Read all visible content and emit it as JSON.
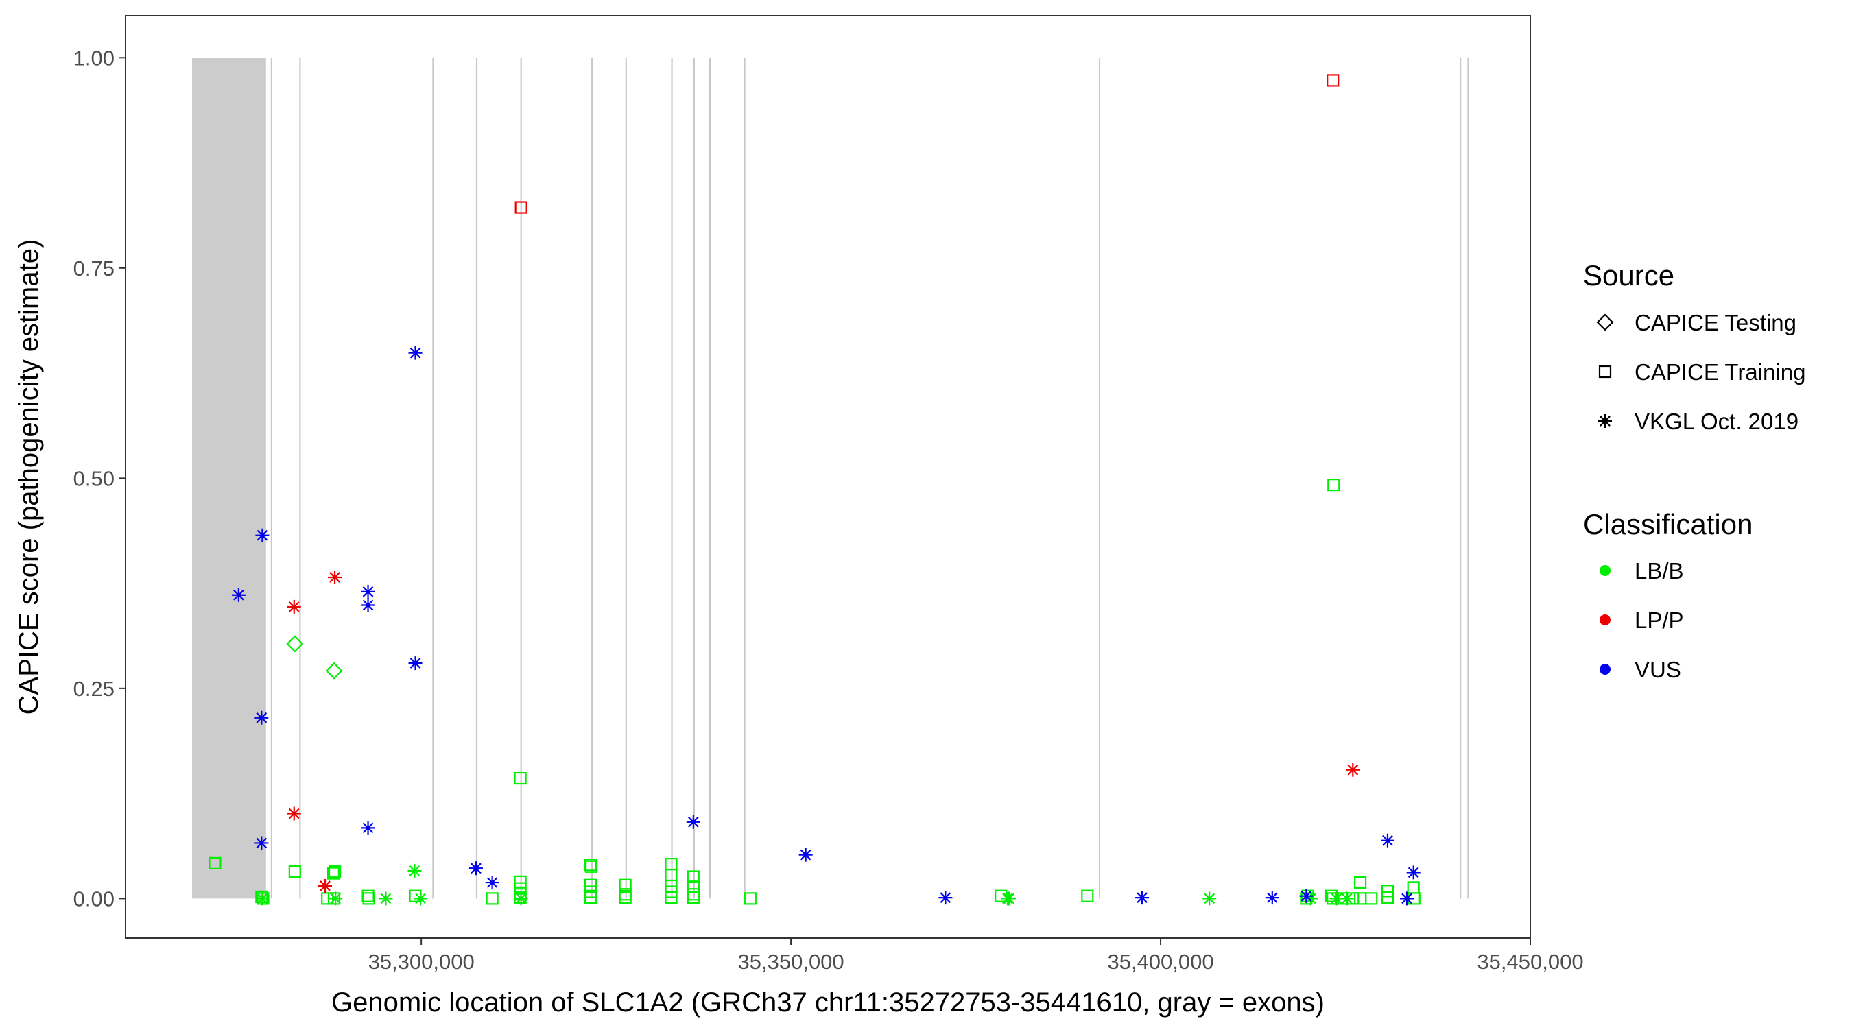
{
  "chart_data": {
    "type": "scatter",
    "xlabel": "Genomic location of SLC1A2 (GRCh37 chr11:35272753-35441610, gray = exons)",
    "ylabel": "CAPICE score (pathogenicity estimate)",
    "xlim": [
      35260000,
      35450000
    ],
    "ylim": [
      -0.047,
      1.05
    ],
    "x_ticks": [
      35300000,
      35350000,
      35400000,
      35450000
    ],
    "x_tick_labels": [
      "35,300,000",
      "35,350,000",
      "35,400,000",
      "35,450,000"
    ],
    "y_ticks": [
      0,
      0.25,
      0.5,
      0.75,
      1.0
    ],
    "y_tick_labels": [
      "0.00",
      "0.25",
      "0.50",
      "0.75",
      "1.00"
    ],
    "grid": false,
    "exons": [
      {
        "start": 35269000,
        "end": 35279000
      },
      {
        "start": 35279650,
        "end": 35279750
      },
      {
        "start": 35283500,
        "end": 35283700
      },
      {
        "start": 35301500,
        "end": 35301600
      },
      {
        "start": 35307400,
        "end": 35307600
      },
      {
        "start": 35313400,
        "end": 35313600
      },
      {
        "start": 35323000,
        "end": 35323100
      },
      {
        "start": 35327600,
        "end": 35327800
      },
      {
        "start": 35333800,
        "end": 35334000
      },
      {
        "start": 35336800,
        "end": 35337000
      },
      {
        "start": 35338950,
        "end": 35339100
      },
      {
        "start": 35343650,
        "end": 35343750
      },
      {
        "start": 35391650,
        "end": 35391750
      },
      {
        "start": 35440450,
        "end": 35440650
      },
      {
        "start": 35441500,
        "end": 35441610
      }
    ],
    "legend": {
      "position": "right",
      "source": {
        "title": "Source",
        "entries": [
          {
            "label": "CAPICE Testing",
            "shape": "diamond"
          },
          {
            "label": "CAPICE Training",
            "shape": "square"
          },
          {
            "label": "VKGL Oct. 2019",
            "shape": "asterisk"
          }
        ]
      },
      "classification": {
        "title": "Classification",
        "entries": [
          {
            "label": "LB/B",
            "color": "#00ee00"
          },
          {
            "label": "LP/P",
            "color": "#ee0000"
          },
          {
            "label": "VUS",
            "color": "#0000ee"
          }
        ]
      }
    },
    "colors": {
      "LB/B": "#00ee00",
      "LP/P": "#ee0000",
      "VUS": "#0000ee"
    },
    "points": [
      {
        "x": 35272100,
        "y": 0.042,
        "source": "CAPICE Training",
        "class": "LB/B"
      },
      {
        "x": 35278400,
        "y": 0.002,
        "source": "CAPICE Training",
        "class": "LB/B"
      },
      {
        "x": 35278600,
        "y": 0.0,
        "source": "CAPICE Training",
        "class": "LB/B"
      },
      {
        "x": 35278500,
        "y": 0.0,
        "source": "VKGL Oct. 2019",
        "class": "LB/B"
      },
      {
        "x": 35282900,
        "y": 0.032,
        "source": "CAPICE Training",
        "class": "LB/B"
      },
      {
        "x": 35287300,
        "y": 0.0,
        "source": "CAPICE Training",
        "class": "LB/B"
      },
      {
        "x": 35288100,
        "y": 0.03,
        "source": "CAPICE Training",
        "class": "LB/B"
      },
      {
        "x": 35288300,
        "y": 0.032,
        "source": "CAPICE Training",
        "class": "LB/B"
      },
      {
        "x": 35288200,
        "y": 0.0,
        "source": "CAPICE Training",
        "class": "LB/B"
      },
      {
        "x": 35288400,
        "y": 0.0,
        "source": "VKGL Oct. 2019",
        "class": "LB/B"
      },
      {
        "x": 35292800,
        "y": 0.003,
        "source": "CAPICE Training",
        "class": "LB/B"
      },
      {
        "x": 35292900,
        "y": 0.0,
        "source": "CAPICE Training",
        "class": "LB/B"
      },
      {
        "x": 35295200,
        "y": 0.0,
        "source": "VKGL Oct. 2019",
        "class": "LB/B"
      },
      {
        "x": 35299100,
        "y": 0.033,
        "source": "VKGL Oct. 2019",
        "class": "LB/B"
      },
      {
        "x": 35299200,
        "y": 0.003,
        "source": "CAPICE Training",
        "class": "LB/B"
      },
      {
        "x": 35299900,
        "y": 0.0,
        "source": "VKGL Oct. 2019",
        "class": "LB/B"
      },
      {
        "x": 35309600,
        "y": 0.0,
        "source": "CAPICE Training",
        "class": "LB/B"
      },
      {
        "x": 35313400,
        "y": 0.143,
        "source": "CAPICE Training",
        "class": "LB/B"
      },
      {
        "x": 35313400,
        "y": 0.02,
        "source": "CAPICE Training",
        "class": "LB/B"
      },
      {
        "x": 35313400,
        "y": 0.012,
        "source": "CAPICE Training",
        "class": "LB/B"
      },
      {
        "x": 35313400,
        "y": 0.005,
        "source": "CAPICE Training",
        "class": "LB/B"
      },
      {
        "x": 35313400,
        "y": 0.001,
        "source": "CAPICE Training",
        "class": "LB/B"
      },
      {
        "x": 35313500,
        "y": 0.0,
        "source": "VKGL Oct. 2019",
        "class": "LB/B"
      },
      {
        "x": 35322900,
        "y": 0.04,
        "source": "CAPICE Training",
        "class": "LB/B"
      },
      {
        "x": 35323000,
        "y": 0.038,
        "source": "CAPICE Training",
        "class": "LB/B"
      },
      {
        "x": 35322900,
        "y": 0.016,
        "source": "CAPICE Training",
        "class": "LB/B"
      },
      {
        "x": 35322900,
        "y": 0.008,
        "source": "CAPICE Training",
        "class": "LB/B"
      },
      {
        "x": 35322900,
        "y": 0.001,
        "source": "CAPICE Training",
        "class": "LB/B"
      },
      {
        "x": 35327600,
        "y": 0.016,
        "source": "CAPICE Training",
        "class": "LB/B"
      },
      {
        "x": 35327600,
        "y": 0.005,
        "source": "CAPICE Training",
        "class": "LB/B"
      },
      {
        "x": 35327600,
        "y": 0.001,
        "source": "CAPICE Training",
        "class": "LB/B"
      },
      {
        "x": 35333800,
        "y": 0.041,
        "source": "CAPICE Training",
        "class": "LB/B"
      },
      {
        "x": 35333800,
        "y": 0.028,
        "source": "CAPICE Training",
        "class": "LB/B"
      },
      {
        "x": 35333800,
        "y": 0.015,
        "source": "CAPICE Training",
        "class": "LB/B"
      },
      {
        "x": 35333800,
        "y": 0.008,
        "source": "CAPICE Training",
        "class": "LB/B"
      },
      {
        "x": 35333800,
        "y": 0.001,
        "source": "CAPICE Training",
        "class": "LB/B"
      },
      {
        "x": 35336800,
        "y": 0.026,
        "source": "CAPICE Training",
        "class": "LB/B"
      },
      {
        "x": 35336800,
        "y": 0.014,
        "source": "CAPICE Training",
        "class": "LB/B"
      },
      {
        "x": 35336800,
        "y": 0.005,
        "source": "CAPICE Training",
        "class": "LB/B"
      },
      {
        "x": 35336800,
        "y": 0.001,
        "source": "CAPICE Training",
        "class": "LB/B"
      },
      {
        "x": 35344500,
        "y": 0.0,
        "source": "CAPICE Training",
        "class": "LB/B"
      },
      {
        "x": 35378400,
        "y": 0.003,
        "source": "CAPICE Training",
        "class": "LB/B"
      },
      {
        "x": 35379300,
        "y": 0.0,
        "source": "VKGL Oct. 2019",
        "class": "LB/B"
      },
      {
        "x": 35379500,
        "y": 0.0,
        "source": "VKGL Oct. 2019",
        "class": "LB/B"
      },
      {
        "x": 35390100,
        "y": 0.003,
        "source": "CAPICE Training",
        "class": "LB/B"
      },
      {
        "x": 35406600,
        "y": 0.0,
        "source": "VKGL Oct. 2019",
        "class": "LB/B"
      },
      {
        "x": 35419700,
        "y": 0.0,
        "source": "CAPICE Training",
        "class": "LB/B"
      },
      {
        "x": 35419900,
        "y": 0.003,
        "source": "CAPICE Training",
        "class": "LB/B"
      },
      {
        "x": 35420300,
        "y": 0.0,
        "source": "VKGL Oct. 2019",
        "class": "LB/B"
      },
      {
        "x": 35423400,
        "y": 0.492,
        "source": "CAPICE Training",
        "class": "LB/B"
      },
      {
        "x": 35423100,
        "y": 0.003,
        "source": "CAPICE Training",
        "class": "LB/B"
      },
      {
        "x": 35423300,
        "y": 0.0,
        "source": "CAPICE Training",
        "class": "LB/B"
      },
      {
        "x": 35423800,
        "y": 0.0,
        "source": "VKGL Oct. 2019",
        "class": "LB/B"
      },
      {
        "x": 35424500,
        "y": 0.0,
        "source": "CAPICE Training",
        "class": "LB/B"
      },
      {
        "x": 35425200,
        "y": 0.0,
        "source": "VKGL Oct. 2019",
        "class": "LB/B"
      },
      {
        "x": 35426000,
        "y": 0.0,
        "source": "CAPICE Training",
        "class": "LB/B"
      },
      {
        "x": 35427000,
        "y": 0.019,
        "source": "CAPICE Training",
        "class": "LB/B"
      },
      {
        "x": 35427000,
        "y": 0.0,
        "source": "CAPICE Training",
        "class": "LB/B"
      },
      {
        "x": 35428500,
        "y": 0.0,
        "source": "CAPICE Training",
        "class": "LB/B"
      },
      {
        "x": 35430700,
        "y": 0.009,
        "source": "CAPICE Training",
        "class": "LB/B"
      },
      {
        "x": 35430700,
        "y": 0.001,
        "source": "CAPICE Training",
        "class": "LB/B"
      },
      {
        "x": 35434200,
        "y": 0.013,
        "source": "CAPICE Training",
        "class": "LB/B"
      },
      {
        "x": 35434300,
        "y": 0.0,
        "source": "CAPICE Training",
        "class": "LB/B"
      },
      {
        "x": 35282900,
        "y": 0.303,
        "source": "CAPICE Testing",
        "class": "LB/B"
      },
      {
        "x": 35288200,
        "y": 0.271,
        "source": "CAPICE Testing",
        "class": "LB/B"
      },
      {
        "x": 35423300,
        "y": 0.973,
        "source": "CAPICE Training",
        "class": "LP/P"
      },
      {
        "x": 35313500,
        "y": 0.822,
        "source": "CAPICE Training",
        "class": "LP/P"
      },
      {
        "x": 35288300,
        "y": 0.382,
        "source": "VKGL Oct. 2019",
        "class": "LP/P"
      },
      {
        "x": 35282800,
        "y": 0.347,
        "source": "VKGL Oct. 2019",
        "class": "LP/P"
      },
      {
        "x": 35282800,
        "y": 0.101,
        "source": "VKGL Oct. 2019",
        "class": "LP/P"
      },
      {
        "x": 35287000,
        "y": 0.015,
        "source": "VKGL Oct. 2019",
        "class": "LP/P"
      },
      {
        "x": 35426000,
        "y": 0.153,
        "source": "VKGL Oct. 2019",
        "class": "LP/P"
      },
      {
        "x": 35299200,
        "y": 0.649,
        "source": "VKGL Oct. 2019",
        "class": "VUS"
      },
      {
        "x": 35278500,
        "y": 0.432,
        "source": "VKGL Oct. 2019",
        "class": "VUS"
      },
      {
        "x": 35275300,
        "y": 0.361,
        "source": "VKGL Oct. 2019",
        "class": "VUS"
      },
      {
        "x": 35292800,
        "y": 0.365,
        "source": "VKGL Oct. 2019",
        "class": "VUS"
      },
      {
        "x": 35292800,
        "y": 0.349,
        "source": "VKGL Oct. 2019",
        "class": "VUS"
      },
      {
        "x": 35299200,
        "y": 0.28,
        "source": "VKGL Oct. 2019",
        "class": "VUS"
      },
      {
        "x": 35278400,
        "y": 0.215,
        "source": "VKGL Oct. 2019",
        "class": "VUS"
      },
      {
        "x": 35292800,
        "y": 0.084,
        "source": "VKGL Oct. 2019",
        "class": "VUS"
      },
      {
        "x": 35278400,
        "y": 0.066,
        "source": "VKGL Oct. 2019",
        "class": "VUS"
      },
      {
        "x": 35307400,
        "y": 0.036,
        "source": "VKGL Oct. 2019",
        "class": "VUS"
      },
      {
        "x": 35309600,
        "y": 0.019,
        "source": "VKGL Oct. 2019",
        "class": "VUS"
      },
      {
        "x": 35336800,
        "y": 0.091,
        "source": "VKGL Oct. 2019",
        "class": "VUS"
      },
      {
        "x": 35352000,
        "y": 0.052,
        "source": "VKGL Oct. 2019",
        "class": "VUS"
      },
      {
        "x": 35370900,
        "y": 0.001,
        "source": "VKGL Oct. 2019",
        "class": "VUS"
      },
      {
        "x": 35397500,
        "y": 0.001,
        "source": "VKGL Oct. 2019",
        "class": "VUS"
      },
      {
        "x": 35415100,
        "y": 0.001,
        "source": "VKGL Oct. 2019",
        "class": "VUS"
      },
      {
        "x": 35419700,
        "y": 0.003,
        "source": "VKGL Oct. 2019",
        "class": "VUS"
      },
      {
        "x": 35430700,
        "y": 0.069,
        "source": "VKGL Oct. 2019",
        "class": "VUS"
      },
      {
        "x": 35434200,
        "y": 0.031,
        "source": "VKGL Oct. 2019",
        "class": "VUS"
      },
      {
        "x": 35433300,
        "y": 0.0,
        "source": "VKGL Oct. 2019",
        "class": "VUS"
      }
    ]
  }
}
